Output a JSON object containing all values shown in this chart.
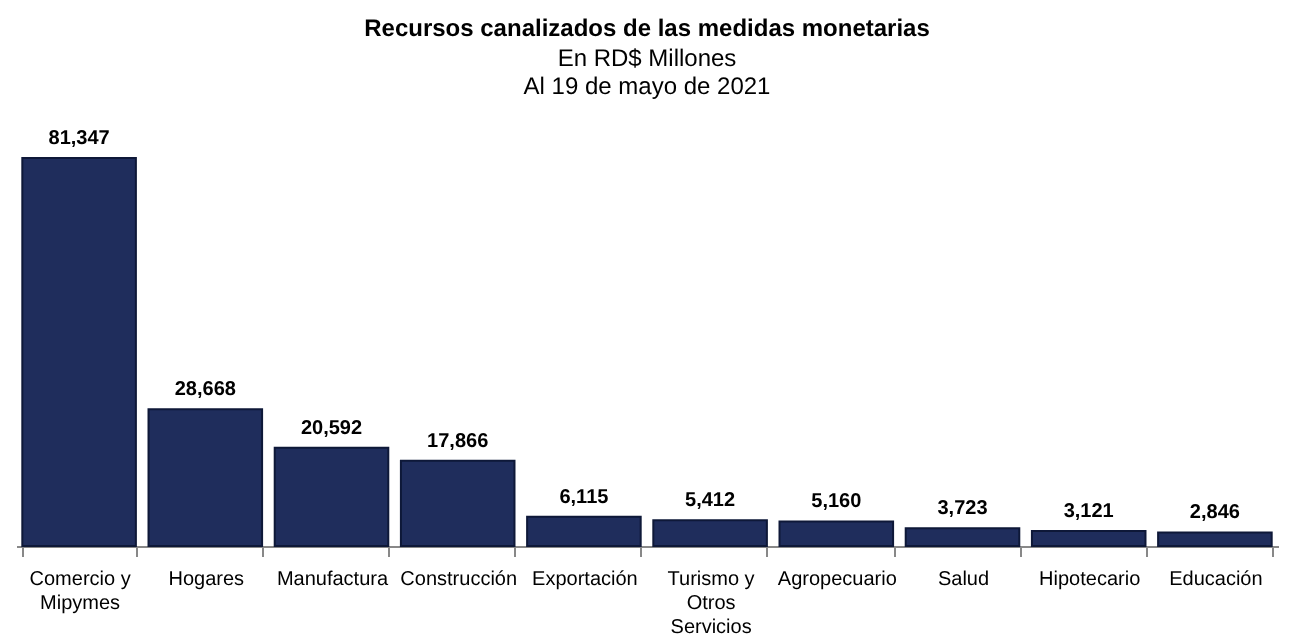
{
  "chart_data": {
    "type": "bar",
    "title": "Recursos canalizados de las medidas monetarias",
    "subtitle": "En RD$ Millones\nAl 19 de mayo de 2021",
    "categories": [
      "Comercio y\nMipymes",
      "Hogares",
      "Manufactura",
      "Construcción",
      "Exportación",
      "Turismo y\nOtros\nServicios",
      "Agropecuario",
      "Salud",
      "Hipotecario",
      "Educación"
    ],
    "values": [
      81347,
      28668,
      20592,
      17866,
      6115,
      5412,
      5160,
      3723,
      3121,
      2846
    ],
    "value_labels": [
      "81,347",
      "28,668",
      "20,592",
      "17,866",
      "6,115",
      "5,412",
      "5,160",
      "3,723",
      "3,121",
      "2,846"
    ],
    "color": "#1f2d5c"
  }
}
